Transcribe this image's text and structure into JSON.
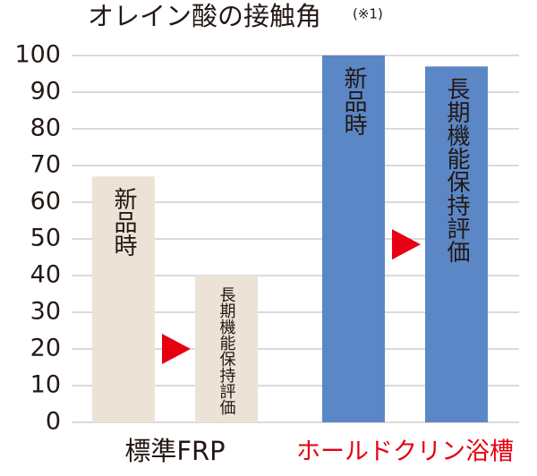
{
  "chart_data": {
    "type": "bar",
    "title": "オレイン酸の接触角",
    "title_note": "(※1)",
    "categories": [
      "新品時",
      "長期機能保持評価"
    ],
    "series": [
      {
        "name": "標準FRP",
        "color": "#ece2d6",
        "label_color": "#231815",
        "values": [
          67,
          40
        ]
      },
      {
        "name": "ホールドクリン浴槽",
        "color": "#5b87c6",
        "label_color": "#e60012",
        "values": [
          100,
          97
        ]
      }
    ],
    "arrow_color": "#e60012",
    "ylim": [
      0,
      100
    ],
    "yticks": [
      0,
      10,
      20,
      30,
      40,
      50,
      60,
      70,
      80,
      90,
      100
    ],
    "grid": true
  }
}
